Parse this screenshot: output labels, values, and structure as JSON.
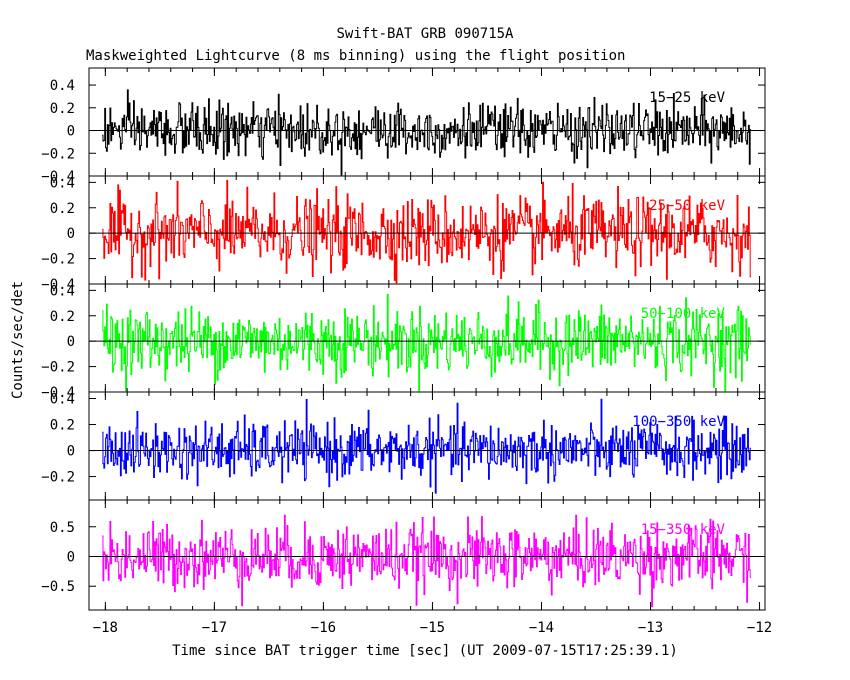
{
  "chart_data": {
    "type": "line",
    "title": "Swift-BAT GRB 090715A",
    "subtitle": "Maskweighted Lightcurve (8 ms binning) using the flight position",
    "xlabel": "Time since BAT trigger time [sec] (UT 2009-07-15T17:25:39.1)",
    "ylabel": "Counts/sec/det",
    "xlim": [
      -18.15,
      -11.95
    ],
    "x_ticks": [
      -18,
      -17,
      -16,
      -15,
      -14,
      -13,
      -12
    ],
    "x_tick_labels": [
      "−18",
      "−17",
      "−16",
      "−15",
      "−14",
      "−13",
      "−12"
    ],
    "time_range": [
      -18.03,
      -12.08
    ],
    "bin_width_s": 0.008,
    "panels": [
      {
        "name": "15-25 keV",
        "label": "15−25 keV",
        "color": "#000000",
        "ylim": [
          -0.4,
          0.55
        ],
        "y_ticks": [
          -0.4,
          -0.2,
          0,
          0.2,
          0.4
        ],
        "y_tick_labels": [
          "−0.4",
          "−0.2",
          "0",
          "0.2",
          "0.4"
        ],
        "noise_sigma": 0.12,
        "clip": [
          -0.39,
          0.52
        ]
      },
      {
        "name": "25-50 keV",
        "label": "25−50 keV",
        "color": "#ff0000",
        "ylim": [
          -0.4,
          0.45
        ],
        "y_ticks": [
          -0.4,
          -0.2,
          0,
          0.2,
          0.4
        ],
        "y_tick_labels": [
          "−0.4",
          "−0.2",
          "0",
          "0.2",
          "0.4"
        ],
        "noise_sigma": 0.14,
        "clip": [
          -0.39,
          0.44
        ]
      },
      {
        "name": "50-100 keV",
        "label": "50−100 keV",
        "color": "#00ff00",
        "ylim": [
          -0.4,
          0.45
        ],
        "y_ticks": [
          -0.4,
          -0.2,
          0,
          0.2,
          0.4
        ],
        "y_tick_labels": [
          "−0.4",
          "−0.2",
          "0",
          "0.2",
          "0.4"
        ],
        "noise_sigma": 0.13,
        "clip": [
          -0.39,
          0.44
        ]
      },
      {
        "name": "100-350 keV",
        "label": "100−350 keV",
        "color": "#0000ff",
        "ylim": [
          -0.38,
          0.45
        ],
        "y_ticks": [
          -0.2,
          0,
          0.2,
          0.4
        ],
        "y_tick_labels": [
          "−0.2",
          "0",
          "0.2",
          "0.4"
        ],
        "noise_sigma": 0.11,
        "clip": [
          -0.37,
          0.44
        ]
      },
      {
        "name": "15-350 keV",
        "label": "15−350 keV",
        "color": "#ff00ff",
        "ylim": [
          -0.9,
          0.95
        ],
        "y_ticks": [
          -0.5,
          0,
          0.5
        ],
        "y_tick_labels": [
          "−0.5",
          "0",
          "0.5"
        ],
        "noise_sigma": 0.27,
        "clip": [
          -0.88,
          0.93
        ]
      }
    ]
  }
}
